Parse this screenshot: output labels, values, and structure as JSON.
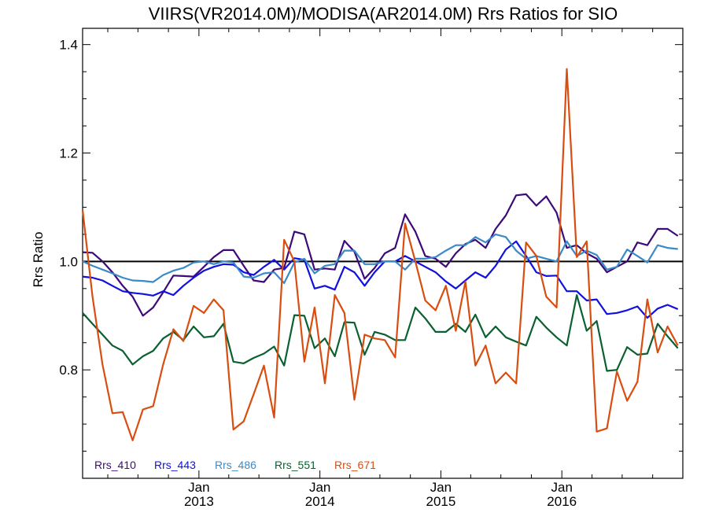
{
  "chart_data": {
    "type": "line",
    "title": "VIIRS(VR2014.0M)/MODISA(AR2014.0M)  Rrs Ratios for SIO",
    "xlabel": "",
    "ylabel": "Rrs Ratio",
    "xlim": [
      "2012-01-16",
      "2016-12-31"
    ],
    "ylim": [
      0.6,
      1.43
    ],
    "yticks": [
      0.8,
      1.0,
      1.2,
      1.4
    ],
    "ytick_labels": [
      "0.8",
      "1.0",
      "1.2",
      "1.4"
    ],
    "xticks": [
      {
        "date": "2013-01-01",
        "month": "Jan",
        "year": "2013"
      },
      {
        "date": "2014-01-01",
        "month": "Jan",
        "year": "2014"
      },
      {
        "date": "2015-01-01",
        "month": "Jan",
        "year": "2015"
      },
      {
        "date": "2016-01-01",
        "month": "Jan",
        "year": "2016"
      }
    ],
    "reference_line": 1.0,
    "legend_position": "bottom-left",
    "x": [
      "2012-01-16",
      "2012-02-15",
      "2012-03-16",
      "2012-04-15",
      "2012-05-16",
      "2012-06-15",
      "2012-07-16",
      "2012-08-16",
      "2012-09-15",
      "2012-10-16",
      "2012-11-15",
      "2012-12-16",
      "2013-01-16",
      "2013-02-15",
      "2013-03-16",
      "2013-04-15",
      "2013-05-16",
      "2013-06-15",
      "2013-07-16",
      "2013-08-16",
      "2013-09-15",
      "2013-10-16",
      "2013-11-15",
      "2013-12-16",
      "2014-01-16",
      "2014-02-15",
      "2014-03-16",
      "2014-04-15",
      "2014-05-16",
      "2014-06-15",
      "2014-07-16",
      "2014-08-16",
      "2014-09-15",
      "2014-10-16",
      "2014-11-15",
      "2014-12-16",
      "2015-01-16",
      "2015-02-15",
      "2015-03-16",
      "2015-04-15",
      "2015-05-16",
      "2015-06-15",
      "2015-07-16",
      "2015-08-16",
      "2015-09-15",
      "2015-10-16",
      "2015-11-15",
      "2015-12-16",
      "2016-01-16",
      "2016-02-15",
      "2016-03-16",
      "2016-04-15",
      "2016-05-16",
      "2016-06-15",
      "2016-07-16",
      "2016-08-16",
      "2016-09-15",
      "2016-10-16",
      "2016-11-15",
      "2016-12-16"
    ],
    "series": [
      {
        "name": "Rrs_410",
        "color": "#3d0a7a",
        "values": [
          1.017,
          1.016,
          1.0,
          0.98,
          0.955,
          0.935,
          0.9,
          0.915,
          0.943,
          0.974,
          0.973,
          0.972,
          0.99,
          1.008,
          1.021,
          1.021,
          0.992,
          0.965,
          0.962,
          0.985,
          0.988,
          1.055,
          1.05,
          0.985,
          0.987,
          0.985,
          1.038,
          1.018,
          0.968,
          0.988,
          1.015,
          1.025,
          1.087,
          1.055,
          1.01,
          1.005,
          0.99,
          1.015,
          1.032,
          1.04,
          1.025,
          1.06,
          1.085,
          1.122,
          1.124,
          1.103,
          1.12,
          1.09,
          1.025,
          1.03,
          1.015,
          1.005,
          0.98,
          0.99,
          1.0,
          1.035,
          1.03,
          1.06,
          1.06,
          1.047
        ]
      },
      {
        "name": "Rrs_443",
        "color": "#1010e0",
        "values": [
          0.972,
          0.97,
          0.965,
          0.955,
          0.945,
          0.942,
          0.94,
          0.937,
          0.945,
          0.938,
          0.955,
          0.97,
          0.983,
          0.99,
          0.995,
          0.994,
          0.98,
          0.975,
          0.99,
          1.003,
          0.985,
          1.006,
          1.003,
          0.95,
          0.955,
          0.948,
          0.99,
          0.98,
          0.955,
          0.98,
          1.0,
          1.0,
          1.01,
          1.0,
          0.99,
          0.98,
          0.963,
          0.95,
          0.965,
          0.98,
          0.97,
          0.992,
          1.022,
          1.037,
          1.01,
          0.98,
          0.973,
          0.974,
          0.945,
          0.945,
          0.928,
          0.93,
          0.903,
          0.905,
          0.91,
          0.917,
          0.896,
          0.913,
          0.92,
          0.912
        ]
      },
      {
        "name": "Rrs_486",
        "color": "#3a8ac8",
        "values": [
          1.0,
          0.992,
          0.985,
          0.978,
          0.97,
          0.965,
          0.964,
          0.962,
          0.975,
          0.983,
          0.988,
          0.998,
          1.0,
          0.995,
          1.0,
          0.998,
          0.972,
          0.97,
          0.978,
          0.98,
          0.96,
          0.998,
          1.005,
          0.978,
          0.992,
          0.995,
          1.02,
          1.02,
          0.995,
          0.995,
          1.0,
          1.0,
          0.985,
          1.005,
          1.005,
          1.008,
          1.02,
          1.03,
          1.03,
          1.045,
          1.035,
          1.05,
          1.045,
          1.02,
          1.005,
          1.01,
          1.005,
          1.0,
          1.037,
          1.01,
          1.02,
          1.012,
          0.985,
          0.99,
          1.022,
          1.01,
          0.998,
          1.03,
          1.025,
          1.023
        ]
      },
      {
        "name": "Rrs_551",
        "color": "#0a6030",
        "values": [
          0.905,
          0.885,
          0.865,
          0.845,
          0.835,
          0.81,
          0.825,
          0.835,
          0.858,
          0.87,
          0.855,
          0.88,
          0.86,
          0.862,
          0.885,
          0.815,
          0.812,
          0.822,
          0.83,
          0.843,
          0.808,
          0.901,
          0.9,
          0.84,
          0.858,
          0.825,
          0.888,
          0.887,
          0.828,
          0.87,
          0.865,
          0.855,
          0.855,
          0.915,
          0.895,
          0.87,
          0.87,
          0.885,
          0.87,
          0.902,
          0.86,
          0.88,
          0.86,
          0.852,
          0.845,
          0.898,
          0.878,
          0.86,
          0.845,
          0.938,
          0.872,
          0.89,
          0.798,
          0.8,
          0.842,
          0.828,
          0.83,
          0.885,
          0.862,
          0.84
        ]
      },
      {
        "name": "Rrs_671",
        "color": "#d84e10",
        "values": [
          1.095,
          0.935,
          0.81,
          0.72,
          0.722,
          0.67,
          0.727,
          0.733,
          0.81,
          0.875,
          0.853,
          0.918,
          0.905,
          0.93,
          0.91,
          0.69,
          0.705,
          0.755,
          0.808,
          0.712,
          1.04,
          1.0,
          0.815,
          0.915,
          0.775,
          0.938,
          0.905,
          0.745,
          0.865,
          0.858,
          0.855,
          0.823,
          1.07,
          1.0,
          0.928,
          0.91,
          0.955,
          0.872,
          0.963,
          0.808,
          0.845,
          0.775,
          0.795,
          0.775,
          1.035,
          1.01,
          0.935,
          0.915,
          1.355,
          1.008,
          1.037,
          0.686,
          0.692,
          0.797,
          0.743,
          0.778,
          0.93,
          0.832,
          0.88,
          0.845
        ]
      }
    ]
  }
}
